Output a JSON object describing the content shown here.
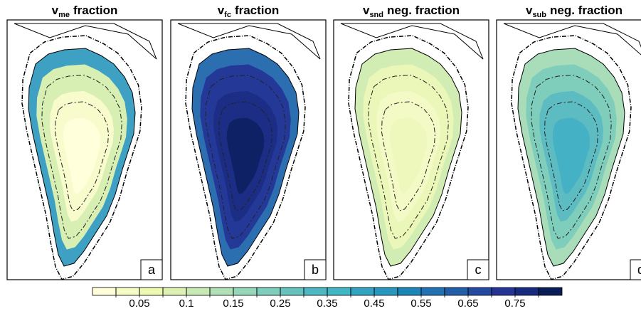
{
  "panels": [
    {
      "symbol": "v",
      "subscript": "me",
      "title": "fraction",
      "label": "a"
    },
    {
      "symbol": "v",
      "subscript": "fc",
      "title": "fraction",
      "label": "b"
    },
    {
      "symbol": "v",
      "subscript": "snd",
      "title": "neg. fraction",
      "label": "c"
    },
    {
      "symbol": "v",
      "subscript": "sub",
      "title": "neg. fraction",
      "label": "d"
    }
  ],
  "colorbar": {
    "levels": [
      0.025,
      0.05,
      0.075,
      0.1,
      0.125,
      0.15,
      0.2,
      0.25,
      0.3,
      0.35,
      0.4,
      0.45,
      0.5,
      0.55,
      0.6,
      0.65,
      0.7,
      0.75,
      0.8
    ],
    "ticks": [
      0.05,
      0.1,
      0.15,
      0.25,
      0.35,
      0.45,
      0.55,
      0.65,
      0.75
    ],
    "colors": [
      "#ffffd9",
      "#f6fbc6",
      "#edf8b1",
      "#dcf1b2",
      "#c7e9b4",
      "#b0e0b6",
      "#96d6b9",
      "#7fcdbb",
      "#66c2bd",
      "#4fb7c1",
      "#41b6c4",
      "#33a3c2",
      "#2797c0",
      "#1d86b8",
      "#2172b3",
      "#225ea8",
      "#2349a0",
      "#253494",
      "#162b7f",
      "#081d58"
    ]
  }
}
